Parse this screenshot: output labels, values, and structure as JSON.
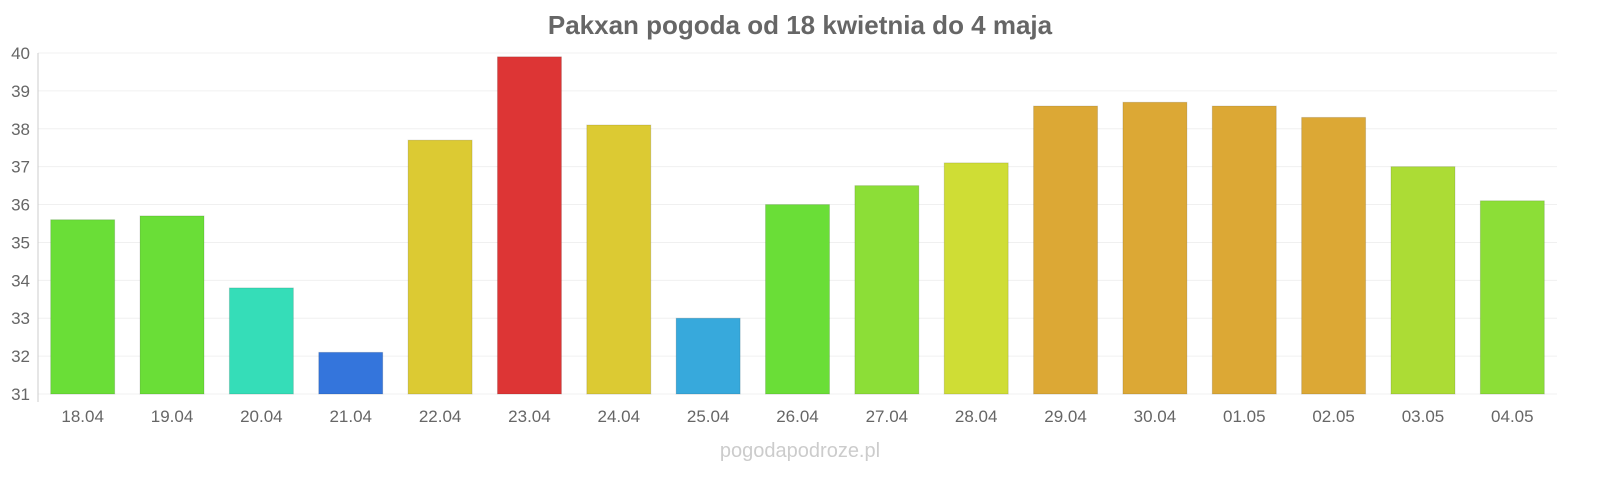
{
  "chart_data": {
    "type": "bar",
    "title": "Pakxan pogoda od 18 kwietnia do 4 maja",
    "watermark": "pogodapodroze.pl",
    "xlabel": "",
    "ylabel": "",
    "ylim": [
      31,
      40
    ],
    "yticks": [
      "31",
      "32",
      "33",
      "34",
      "35",
      "36",
      "37",
      "38",
      "39",
      "40"
    ],
    "grid": true,
    "categories": [
      "18.04",
      "19.04",
      "20.04",
      "21.04",
      "22.04",
      "23.04",
      "24.04",
      "25.04",
      "26.04",
      "27.04",
      "28.04",
      "29.04",
      "30.04",
      "01.05",
      "02.05",
      "03.05",
      "04.05"
    ],
    "values": [
      35.6,
      35.7,
      33.8,
      32.1,
      37.7,
      39.9,
      38.1,
      33.0,
      36.0,
      36.5,
      37.1,
      38.6,
      38.7,
      38.6,
      38.3,
      37.0,
      36.1
    ],
    "colors": [
      "#6ade37",
      "#6ade37",
      "#35ddb8",
      "#3475dc",
      "#dcca33",
      "#dd3535",
      "#dcca33",
      "#37a9dc",
      "#6ade37",
      "#8cde37",
      "#cfdd35",
      "#dca835",
      "#dca835",
      "#dca835",
      "#dca835",
      "#acdc35",
      "#8cde37"
    ]
  }
}
